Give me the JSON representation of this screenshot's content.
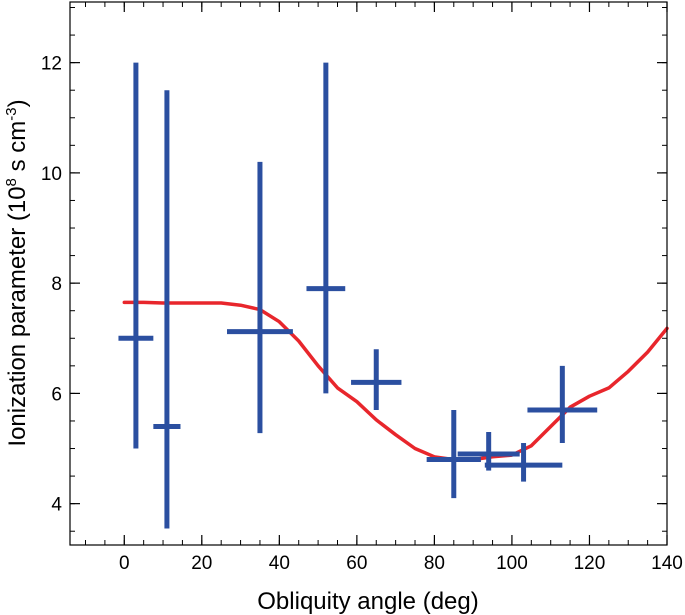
{
  "chart_data": {
    "type": "scatter",
    "xlabel": "Obliquity angle (deg)",
    "ylabel": {
      "text": "Ionization parameter (10",
      "sup1": "8",
      "mid": " s cm",
      "sup2": "-3",
      "end": ")"
    },
    "xlim": [
      -14,
      140
    ],
    "ylim": [
      3.25,
      13.1
    ],
    "xticks": [
      0,
      20,
      40,
      60,
      80,
      100,
      120,
      140
    ],
    "yticks": [
      4,
      6,
      8,
      10,
      12
    ],
    "x_minor_step": 5,
    "y_minor_step": 0.5,
    "grid": false,
    "colors": {
      "points": "#2b4fa0",
      "curve": "#e8262c",
      "axes": "#000000"
    },
    "series": [
      {
        "type": "errorbar",
        "points": [
          {
            "x": 3,
            "y": 7.0,
            "xerr": 4.5,
            "ylow": 5.0,
            "yhigh": 12.0
          },
          {
            "x": 11,
            "y": 5.4,
            "xerr": 3.5,
            "ylow": 3.55,
            "yhigh": 11.5
          },
          {
            "x": 35,
            "y": 7.12,
            "xerr": 8.5,
            "ylow": 5.28,
            "yhigh": 10.2
          },
          {
            "x": 52,
            "y": 7.9,
            "xerr": 5.0,
            "ylow": 6.0,
            "yhigh": 12.0
          },
          {
            "x": 65,
            "y": 6.2,
            "xerr": 6.5,
            "ylow": 5.7,
            "yhigh": 6.8
          },
          {
            "x": 85,
            "y": 4.8,
            "xerr": 7.0,
            "ylow": 4.1,
            "yhigh": 5.7
          },
          {
            "x": 94,
            "y": 4.9,
            "xerr": 8.0,
            "ylow": 4.6,
            "yhigh": 5.3
          },
          {
            "x": 103,
            "y": 4.7,
            "xerr": 10.0,
            "ylow": 4.4,
            "yhigh": 5.1
          },
          {
            "x": 113,
            "y": 5.7,
            "xerr": 9.0,
            "ylow": 5.1,
            "yhigh": 6.5
          }
        ]
      },
      {
        "type": "line",
        "x": [
          0,
          5,
          10,
          15,
          20,
          25,
          30,
          35,
          40,
          45,
          50,
          55,
          60,
          65,
          70,
          75,
          80,
          85,
          90,
          95,
          100,
          105,
          110,
          115,
          120,
          125,
          130,
          135,
          140
        ],
        "y": [
          7.65,
          7.65,
          7.64,
          7.64,
          7.64,
          7.64,
          7.6,
          7.52,
          7.3,
          6.95,
          6.5,
          6.1,
          5.85,
          5.52,
          5.25,
          5.0,
          4.85,
          4.8,
          4.8,
          4.85,
          4.88,
          5.05,
          5.4,
          5.75,
          5.95,
          6.1,
          6.4,
          6.75,
          7.18
        ]
      }
    ]
  }
}
